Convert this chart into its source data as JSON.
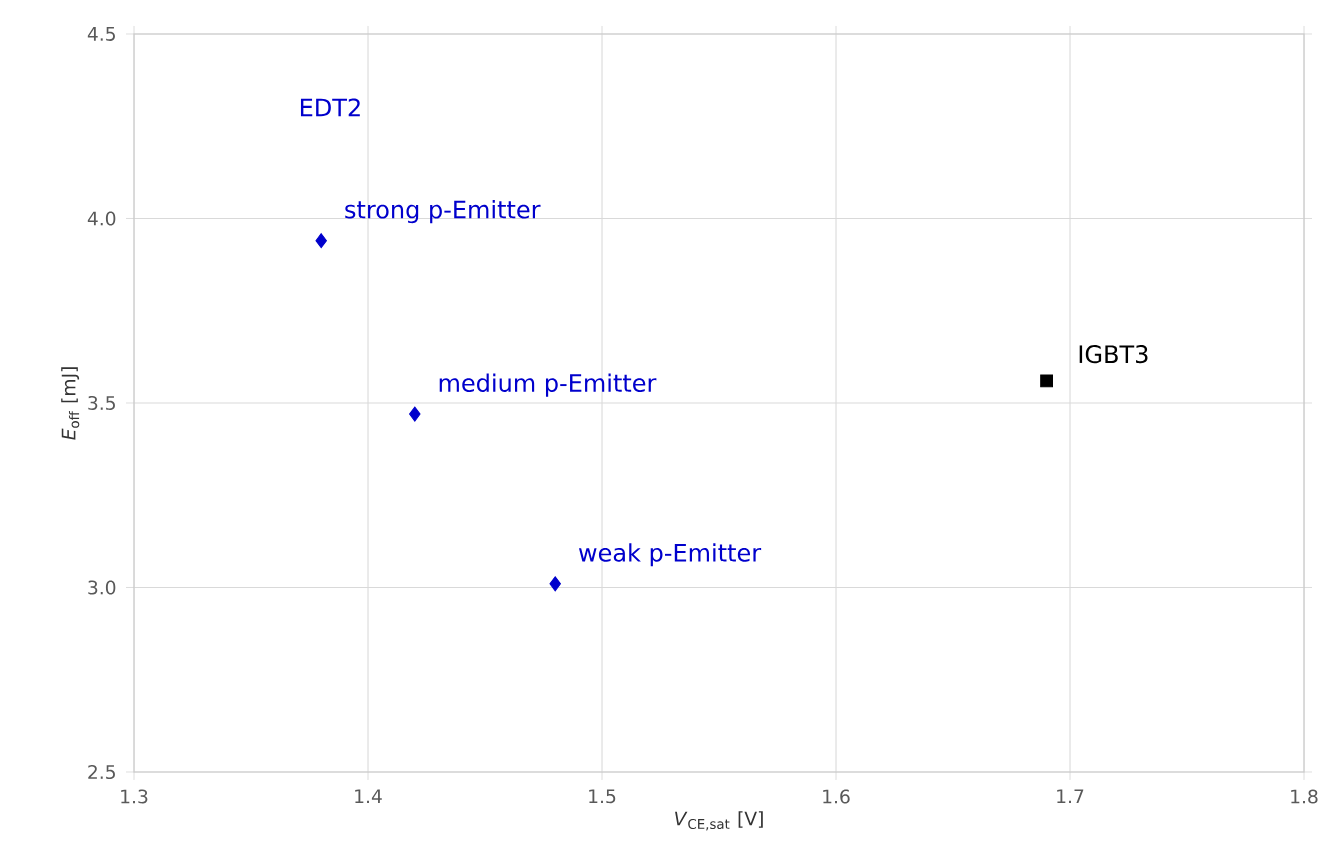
{
  "chart_data": {
    "type": "scatter",
    "xlabel": "*V*$_{CE,sat}$ [V]",
    "ylabel": "*E*$_{off}$ [mJ]",
    "xlim": [
      1.3,
      1.8
    ],
    "ylim": [
      2.5,
      4.5
    ],
    "xticks": [
      1.3,
      1.4,
      1.5,
      1.6,
      1.7,
      1.8
    ],
    "yticks": [
      {
        "value": 2.5,
        "label": "2.5"
      },
      {
        "value": 3,
        "label": "3.0"
      },
      {
        "value": 3.5,
        "label": "3.5"
      },
      {
        "value": 4,
        "label": "4.0"
      },
      {
        "value": 4.5,
        "label": "4.5"
      }
    ],
    "grid": true,
    "series": [
      {
        "name": "EDT2",
        "color": "#0000cc",
        "marker": "diamond",
        "x": [
          1.38,
          1.42,
          1.48
        ],
        "values": [
          3.94,
          3.47,
          3.01
        ]
      },
      {
        "name": "IGBT3",
        "color": "#000000",
        "marker": "square",
        "x": [
          1.69
        ],
        "values": [
          3.56
        ]
      }
    ],
    "annotations": [
      {
        "text": "strong p-Emitter",
        "x": 1.38,
        "y": 3.94
      },
      {
        "text": "medium p-Emitter",
        "x": 1.42,
        "y": 3.47
      },
      {
        "text": "weak p-Emitter",
        "x": 1.48,
        "y": 3.01
      }
    ]
  }
}
